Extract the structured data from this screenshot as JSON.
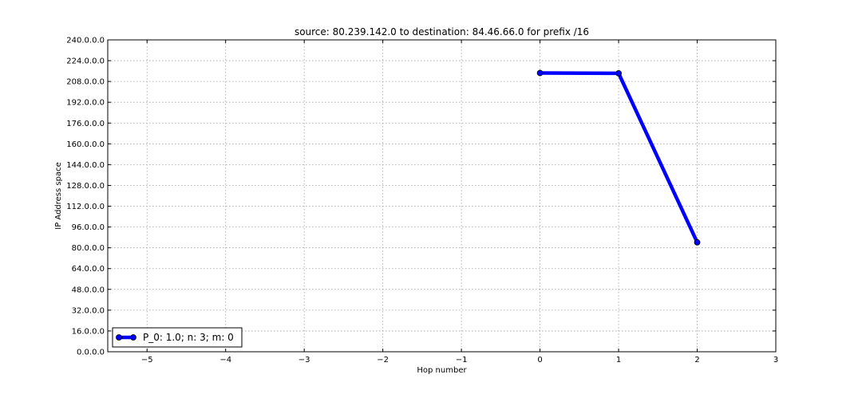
{
  "chart_data": {
    "type": "line",
    "title": "source: 80.239.142.0 to destination: 84.46.66.0 for prefix /16",
    "xlabel": "Hop number",
    "ylabel": "IP Address space",
    "xlim": [
      -5.5,
      3
    ],
    "ylim": [
      0,
      240
    ],
    "x_ticks": [
      -5,
      -4,
      -3,
      -2,
      -1,
      0,
      1,
      2,
      3
    ],
    "x_tick_labels": [
      "−5",
      "−4",
      "−3",
      "−2",
      "−1",
      "0",
      "1",
      "2",
      "3"
    ],
    "y_ticks": [
      0,
      16,
      32,
      48,
      64,
      80,
      96,
      112,
      128,
      144,
      160,
      176,
      192,
      208,
      224,
      240
    ],
    "y_tick_labels": [
      "0.0.0.0",
      "16.0.0.0",
      "32.0.0.0",
      "48.0.0.0",
      "64.0.0.0",
      "80.0.0.0",
      "96.0.0.0",
      "112.0.0.0",
      "128.0.0.0",
      "144.0.0.0",
      "160.0.0.0",
      "176.0.0.0",
      "192.0.0.0",
      "208.0.0.0",
      "224.0.0.0",
      "240.0.0.0"
    ],
    "grid": true,
    "legend_position": "lower-left",
    "series": [
      {
        "name": "P_0: 1.0; n: 3; m: 0",
        "color": "#0000ff",
        "x": [
          0,
          1,
          2
        ],
        "y": [
          214.5,
          214.3,
          84.2
        ]
      }
    ]
  }
}
